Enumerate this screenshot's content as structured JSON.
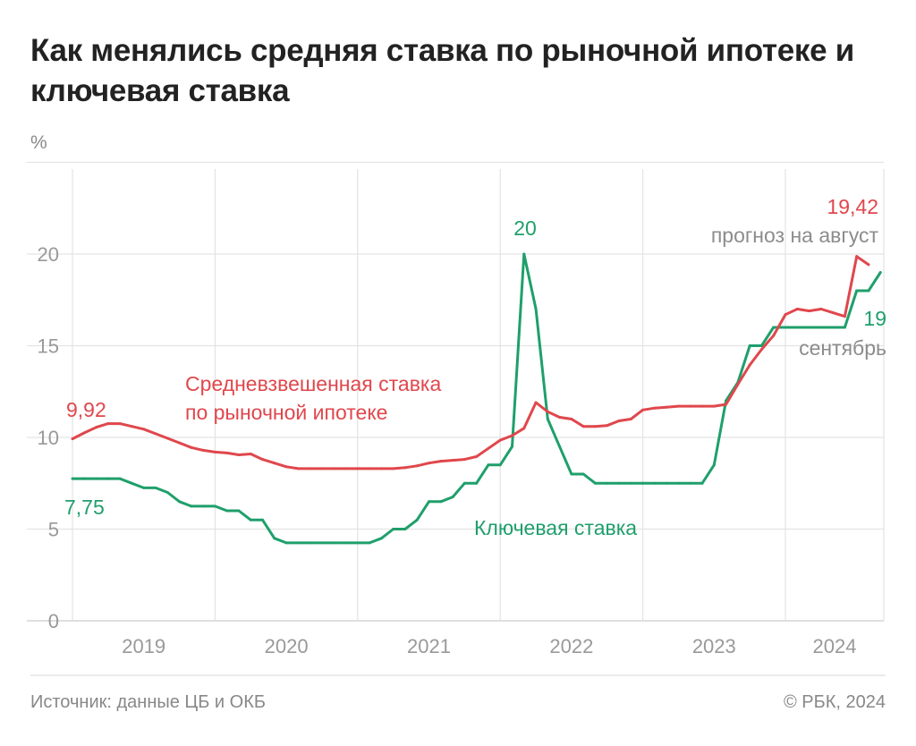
{
  "title": "Как менялись средняя ставка по рыночной ипотеке и ключевая ставка",
  "footer": {
    "source": "Источник: данные ЦБ и ОКБ",
    "copyright": "© РБК, 2024"
  },
  "chart_data": {
    "type": "line",
    "title": "Как менялись средняя ставка по рыночной ипотеке и ключевая ставка",
    "ylabel": "%",
    "ylim": [
      0,
      25
    ],
    "yticks": [
      "0",
      "5",
      "10",
      "15",
      "20"
    ],
    "xlim": [
      "2019-01",
      "2024-09"
    ],
    "xticks": [
      "2019",
      "2020",
      "2021",
      "2022",
      "2023",
      "2024"
    ],
    "grid": true,
    "colors": {
      "mortgage": "#e0474c",
      "key": "#1f9f6b",
      "note": "#8c8c8c"
    },
    "series": [
      {
        "name": "Средневзвешенная ставка по рыночной ипотеке",
        "label_lines": [
          "Средневзвешенная ставка",
          "по рыночной ипотеке"
        ],
        "start": "2019-01",
        "values": [
          9.92,
          10.25,
          10.55,
          10.75,
          10.75,
          10.6,
          10.45,
          10.2,
          9.95,
          9.7,
          9.45,
          9.3,
          9.2,
          9.15,
          9.05,
          9.1,
          8.8,
          8.6,
          8.4,
          8.3,
          8.3,
          8.3,
          8.3,
          8.3,
          8.3,
          8.3,
          8.3,
          8.3,
          8.35,
          8.45,
          8.6,
          8.7,
          8.75,
          8.8,
          8.95,
          9.4,
          9.85,
          10.1,
          10.5,
          11.9,
          11.4,
          11.1,
          11.0,
          10.6,
          10.6,
          10.65,
          10.9,
          11.0,
          11.5,
          11.6,
          11.65,
          11.7,
          11.7,
          11.7,
          11.7,
          11.8,
          12.9,
          13.95,
          14.8,
          15.55,
          16.7,
          17.0,
          16.9,
          17.0,
          16.8,
          16.6,
          19.87,
          19.42
        ]
      },
      {
        "name": "Ключевая ставка",
        "label_lines": [
          "Ключевая ставка"
        ],
        "start": "2019-01",
        "values": [
          7.75,
          7.75,
          7.75,
          7.75,
          7.75,
          7.5,
          7.25,
          7.25,
          7.0,
          6.5,
          6.25,
          6.25,
          6.25,
          6.0,
          6.0,
          5.5,
          5.5,
          4.5,
          4.25,
          4.25,
          4.25,
          4.25,
          4.25,
          4.25,
          4.25,
          4.25,
          4.5,
          5.0,
          5.0,
          5.5,
          6.5,
          6.5,
          6.75,
          7.5,
          7.5,
          8.5,
          8.5,
          9.5,
          20,
          17,
          11,
          9.5,
          8,
          8,
          7.5,
          7.5,
          7.5,
          7.5,
          7.5,
          7.5,
          7.5,
          7.5,
          7.5,
          7.5,
          8.5,
          12,
          13,
          15,
          15,
          16,
          16,
          16,
          16,
          16,
          16,
          16,
          18,
          18,
          19
        ]
      }
    ],
    "annotations": {
      "mortgage_start": "9,92",
      "key_start": "7,75",
      "key_peak": "20",
      "mortgage_end": "19,42",
      "mortgage_end_note": "прогноз на август",
      "key_end": "19",
      "key_end_note": "сентябрь"
    }
  }
}
